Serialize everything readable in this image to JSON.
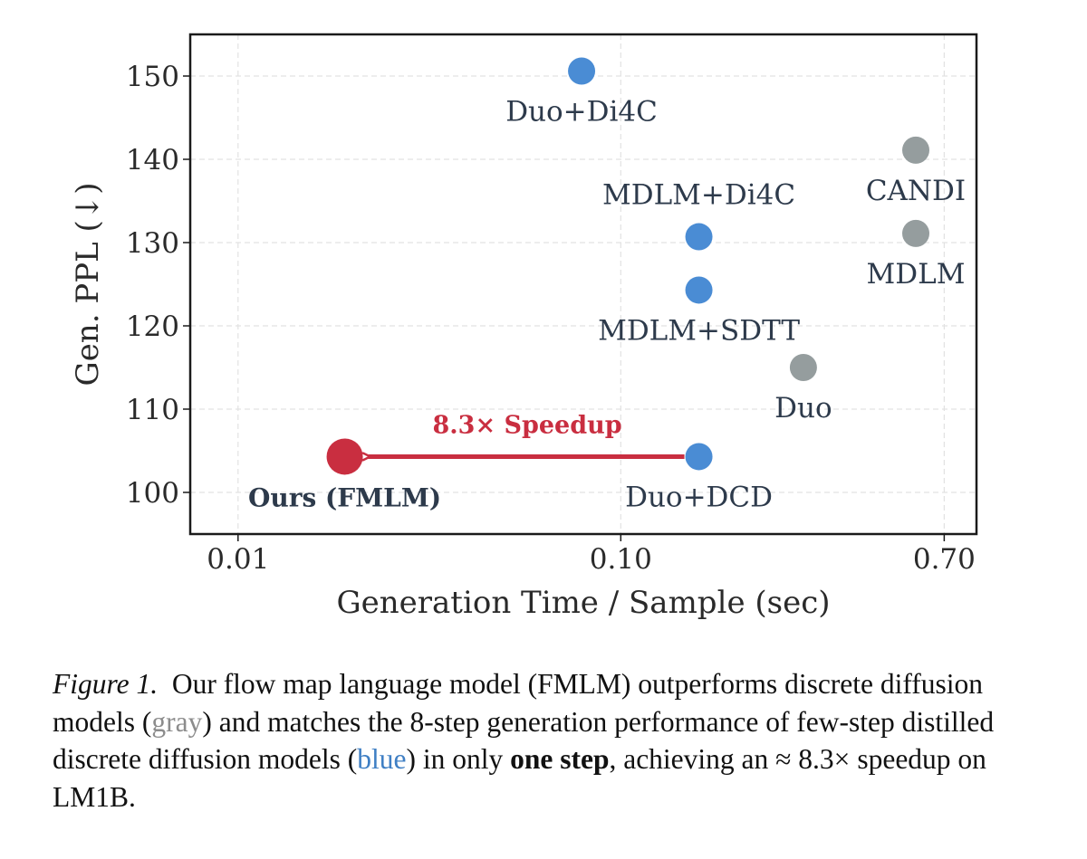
{
  "chart_data": {
    "type": "scatter",
    "xlabel": "Generation Time / Sample (sec)",
    "ylabel": "Gen. PPL (↓)",
    "x_scale": "log",
    "xlim": [
      0.0075,
      0.85
    ],
    "ylim": [
      95,
      155
    ],
    "x_ticks": [
      {
        "value": 0.01,
        "label": "0.01"
      },
      {
        "value": 0.1,
        "label": "0.10"
      },
      {
        "value": 0.7,
        "label": "0.70"
      }
    ],
    "y_ticks": [
      {
        "value": 100,
        "label": "100"
      },
      {
        "value": 110,
        "label": "110"
      },
      {
        "value": 120,
        "label": "120"
      },
      {
        "value": 130,
        "label": "130"
      },
      {
        "value": 140,
        "label": "140"
      },
      {
        "value": 150,
        "label": "150"
      }
    ],
    "grid": true,
    "colors": {
      "blue": "#4a8cd4",
      "gray": "#959d9e",
      "red": "#c92e40",
      "text": "#2d3a4b"
    },
    "points": [
      {
        "label": "Duo+Di4C",
        "x": 0.079,
        "y": 150.6,
        "color": "blue",
        "label_pos": "below"
      },
      {
        "label": "MDLM+Di4C",
        "x": 0.16,
        "y": 130.7,
        "color": "blue",
        "label_pos": "above"
      },
      {
        "label": "MDLM+SDTT",
        "x": 0.16,
        "y": 124.3,
        "color": "blue",
        "label_pos": "below"
      },
      {
        "label": "Duo+DCD",
        "x": 0.16,
        "y": 104.3,
        "color": "blue",
        "label_pos": "below"
      },
      {
        "label": "CANDI",
        "x": 0.59,
        "y": 141.1,
        "color": "gray",
        "label_pos": "below"
      },
      {
        "label": "MDLM",
        "x": 0.59,
        "y": 131.1,
        "color": "gray",
        "label_pos": "below"
      },
      {
        "label": "Duo",
        "x": 0.3,
        "y": 115.0,
        "color": "gray",
        "label_pos": "below"
      },
      {
        "label": "Ours (FMLM)",
        "x": 0.019,
        "y": 104.3,
        "color": "red",
        "label_pos": "below",
        "bold": true,
        "large": true
      }
    ],
    "annotation": {
      "text": "8.3× Speedup",
      "from_x": 0.16,
      "to_x": 0.019,
      "y": 104.3
    }
  },
  "caption": {
    "figure_label": "Figure 1.",
    "part1": "Our flow map language model (FMLM) outperforms discrete diffusion models (",
    "gray_word": "gray",
    "part2": ") and matches the 8-step generation performance of few-step distilled discrete diffusion models (",
    "blue_word": "blue",
    "part3": ") in only ",
    "bold_phrase": "one step",
    "part4": ", achieving an ≈ 8.3× speedup on LM1B."
  }
}
